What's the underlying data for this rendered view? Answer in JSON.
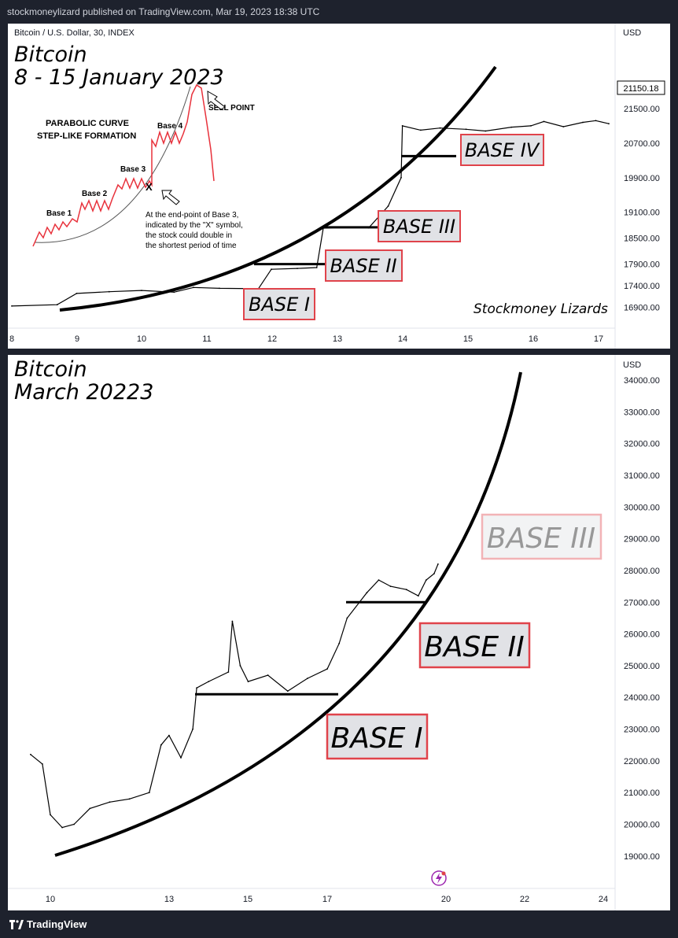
{
  "header": {
    "publish_line": "stockmoneylizard published on TradingView.com, Mar 19, 2023 18:38 UTC"
  },
  "footer": {
    "brand": "TradingView"
  },
  "colors": {
    "background": "#1e222d",
    "panel": "#ffffff",
    "curve": "#000000",
    "label_border": "#e0434b",
    "label_fill": "#e1e2e6",
    "diagram_red": "#e8323c"
  },
  "panels": [
    {
      "symbol_line": "Bitcoin / U.S. Dollar, 30, INDEX",
      "currency": "USD",
      "title_line1": "Bitcoin",
      "title_line2": "8 - 15 January 2023",
      "watermark": "Stockmoney Lizards",
      "last_price": "21150.18",
      "labels": [
        "BASE I",
        "BASE II",
        "BASE III",
        "BASE IV"
      ],
      "inset": {
        "heading_line1": "PARABOLIC CURVE",
        "heading_line2": "STEP-LIKE FORMATION",
        "base_labels": [
          "Base 1",
          "Base 2",
          "Base 3",
          "Base 4"
        ],
        "x_marker": "X",
        "sell_point": "SELL POINT",
        "note_lines": [
          "At the end-point of Base 3,",
          "indicated by the \"X\" symbol,",
          "the stock could double in",
          "the shortest period of time"
        ]
      }
    },
    {
      "currency": "USD",
      "title_line1": "Bitcoin",
      "title_line2": "March 20223",
      "labels": [
        "BASE I",
        "BASE II",
        "BASE III"
      ]
    }
  ],
  "chart_data": [
    {
      "type": "line",
      "title": "Bitcoin 8 - 15 January 2023",
      "x_tick_labels": [
        "8",
        "9",
        "10",
        "11",
        "12",
        "13",
        "14",
        "15",
        "16",
        "17"
      ],
      "y_tick_labels": [
        "21500.00",
        "20700.00",
        "19900.00",
        "19100.00",
        "18500.00",
        "17900.00",
        "17400.00",
        "16900.00"
      ],
      "ylim": [
        16800,
        21900
      ],
      "series": [
        {
          "x": [
            8.0,
            8.7,
            9.0,
            9.5,
            10.0,
            10.5,
            10.8,
            11.2,
            11.8,
            12.0,
            12.4,
            12.7,
            12.8,
            13.2,
            13.5,
            13.8,
            14.0,
            14.02,
            14.3,
            14.6,
            15.0,
            15.3,
            15.7,
            16.0,
            16.2,
            16.5,
            16.8,
            17.0,
            17.2
          ],
          "y": [
            16930,
            16960,
            17220,
            17260,
            17290,
            17250,
            17360,
            17340,
            17330,
            17780,
            17800,
            17820,
            18730,
            18760,
            18740,
            19240,
            19900,
            21100,
            21000,
            21050,
            21020,
            20980,
            21070,
            21100,
            21200,
            21080,
            21180,
            21220,
            21150
          ]
        }
      ],
      "bases": [
        {
          "name": "BASE I",
          "level": 17400
        },
        {
          "name": "BASE II",
          "level": 17900
        },
        {
          "name": "BASE III",
          "level": 18750
        },
        {
          "name": "BASE IV",
          "level": 20400
        }
      ]
    },
    {
      "type": "line",
      "title": "Bitcoin March 20223",
      "x_tick_labels": [
        "10",
        "13",
        "15",
        "17",
        "20",
        "22",
        "24"
      ],
      "y_tick_labels": [
        "34000.00",
        "33000.00",
        "32000.00",
        "31000.00",
        "30000.00",
        "29000.00",
        "28000.00",
        "27000.00",
        "26000.00",
        "25000.00",
        "24000.00",
        "23000.00",
        "22000.00",
        "21000.00",
        "20000.00",
        "19000.00"
      ],
      "ylim": [
        18500,
        34200
      ],
      "series": [
        {
          "x": [
            9.5,
            9.8,
            10.0,
            10.3,
            10.6,
            11.0,
            11.5,
            12.0,
            12.5,
            12.8,
            13.0,
            13.3,
            13.6,
            13.7,
            14.0,
            14.5,
            14.6,
            14.8,
            15.0,
            15.5,
            16.0,
            16.5,
            17.0,
            17.3,
            17.5,
            18.0,
            18.3,
            18.6,
            19.0,
            19.3,
            19.5,
            19.7,
            19.8
          ],
          "y": [
            22200,
            21900,
            20300,
            19900,
            20000,
            20500,
            20700,
            20800,
            21000,
            22500,
            22800,
            22100,
            23000,
            24300,
            24500,
            24800,
            26400,
            25000,
            24500,
            24700,
            24200,
            24600,
            24900,
            25700,
            26500,
            27300,
            27700,
            27500,
            27400,
            27200,
            27700,
            27900,
            28200
          ]
        }
      ],
      "bases": [
        {
          "name": "BASE I",
          "level": 24100
        },
        {
          "name": "BASE II",
          "level": 27000
        },
        {
          "name": "BASE III"
        }
      ]
    }
  ]
}
